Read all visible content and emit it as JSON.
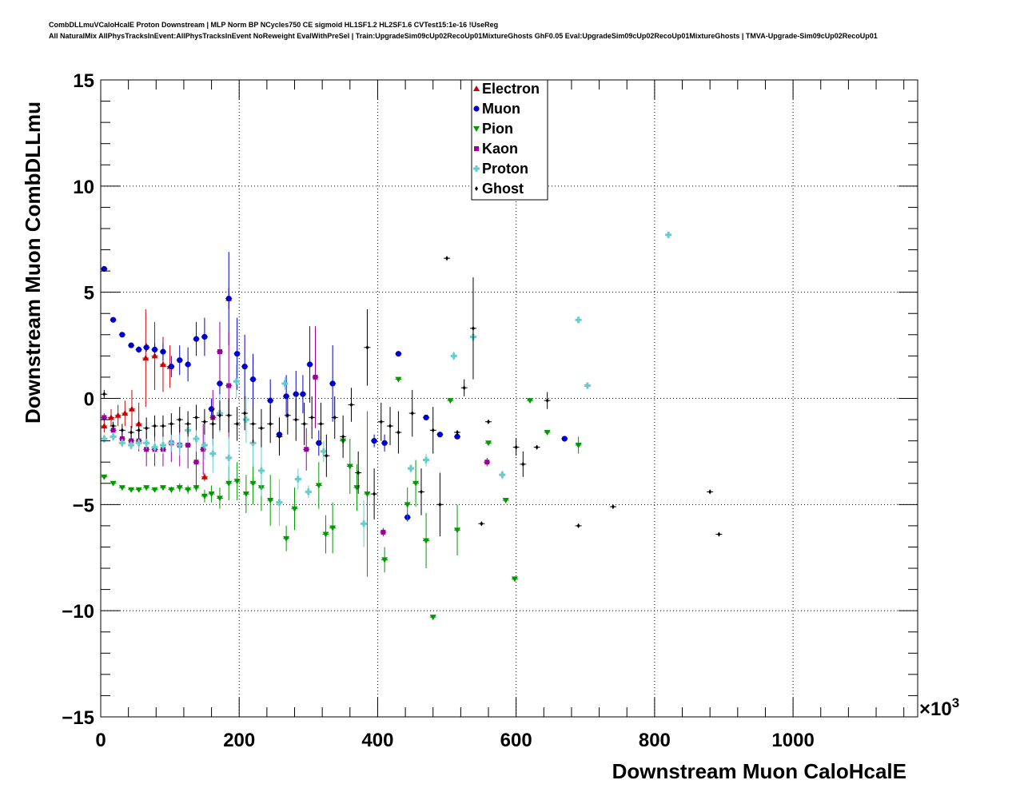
{
  "header": {
    "line1": "CombDLLmuVCaloHcalE Proton Downstream | MLP Norm BP NCycles750 CE sigmoid HL1SF1.2 HL2SF1.6 CVTest15:1e-16 !UseReg",
    "line2": "All NaturalMix AllPhysTracksInEvent:AllPhysTracksInEvent NoReweight EvalWithPreSel | Train:UpgradeSim09cUp02RecoUp01MixtureGhosts GhF0.05 Eval:UpgradeSim09cUp02RecoUp01MixtureGhosts | TMVA-Upgrade-Sim09cUp02RecoUp01"
  },
  "chart_data": {
    "type": "scatter",
    "xlabel": "Downstream Muon CaloHcalE",
    "ylabel": "Downstream Muon CombDLLmu",
    "x_multiplier_label": "×10",
    "x_multiplier_exp": "3",
    "xlim": [
      0,
      1180
    ],
    "ylim": [
      -15,
      15
    ],
    "x_ticks": [
      0,
      200,
      400,
      600,
      800,
      1000
    ],
    "x_tick_labels": [
      "0",
      "200",
      "400",
      "600",
      "800",
      "1000"
    ],
    "y_ticks": [
      -15,
      -10,
      -5,
      0,
      5,
      10,
      15
    ],
    "y_tick_labels": [
      "−15",
      "−10",
      "−5",
      "0",
      "5",
      "10",
      "15"
    ],
    "grid": true,
    "legend_position": "top-center",
    "series": [
      {
        "name": "Electron",
        "color": "#cc0000",
        "marker": "triangle-up",
        "points": [
          [
            5,
            -1.3,
            0.3
          ],
          [
            15,
            -0.9,
            0.4
          ],
          [
            25,
            -0.8,
            0.5
          ],
          [
            35,
            -0.7,
            0.6
          ],
          [
            45,
            -0.5,
            0.9
          ],
          [
            55,
            -1.2,
            1.0
          ],
          [
            65,
            1.9,
            2.3
          ],
          [
            78,
            2.0,
            1.6
          ],
          [
            90,
            1.6,
            1.3
          ],
          [
            100,
            1.5,
            1.0
          ],
          [
            150,
            -3.7,
            0.2
          ],
          [
            185,
            4.7,
            0.5
          ]
        ]
      },
      {
        "name": "Muon",
        "color": "#0000cc",
        "marker": "circle",
        "points": [
          [
            5,
            6.1,
            0.1
          ],
          [
            18,
            3.7,
            0.1
          ],
          [
            31,
            3.0,
            0.1
          ],
          [
            44,
            2.5,
            0.1
          ],
          [
            55,
            2.3,
            0.15
          ],
          [
            66,
            2.4,
            0.2
          ],
          [
            78,
            2.3,
            0.3
          ],
          [
            90,
            2.2,
            0.4
          ],
          [
            102,
            1.5,
            0.5
          ],
          [
            114,
            1.8,
            0.7
          ],
          [
            126,
            1.6,
            0.8
          ],
          [
            138,
            2.8,
            0.8
          ],
          [
            150,
            2.9,
            0.9
          ],
          [
            160,
            -0.5,
            0.5
          ],
          [
            172,
            0.7,
            1.3
          ],
          [
            185,
            4.7,
            2.2
          ],
          [
            197,
            2.1,
            1.7
          ],
          [
            208,
            1.5,
            1.5
          ],
          [
            220,
            0.9,
            1.2
          ],
          [
            245,
            -0.1,
            1.0
          ],
          [
            258,
            -1.7,
            0.8
          ],
          [
            268,
            0.1,
            1.0
          ],
          [
            282,
            0.2,
            1.1
          ],
          [
            292,
            0.2,
            0.9
          ],
          [
            302,
            1.6,
            1.8
          ],
          [
            315,
            -2.1,
            0.6
          ],
          [
            335,
            0.7,
            1.8
          ],
          [
            395,
            -2.0,
            0.3
          ],
          [
            410,
            -2.1,
            0.4
          ],
          [
            430,
            2.1,
            0.1
          ],
          [
            443,
            -5.6,
            0.2
          ],
          [
            470,
            -0.9,
            0.1
          ],
          [
            490,
            -1.7,
            0.1
          ],
          [
            515,
            -1.8,
            0.1
          ],
          [
            670,
            -1.9,
            0.1
          ]
        ]
      },
      {
        "name": "Pion",
        "color": "#009900",
        "marker": "triangle-down",
        "points": [
          [
            5,
            -3.7,
            0.1
          ],
          [
            18,
            -4.0,
            0.1
          ],
          [
            31,
            -4.2,
            0.1
          ],
          [
            44,
            -4.3,
            0.1
          ],
          [
            55,
            -4.3,
            0.1
          ],
          [
            66,
            -4.2,
            0.1
          ],
          [
            78,
            -4.3,
            0.1
          ],
          [
            90,
            -4.2,
            0.1
          ],
          [
            102,
            -4.3,
            0.15
          ],
          [
            114,
            -4.2,
            0.2
          ],
          [
            126,
            -4.3,
            0.2
          ],
          [
            138,
            -4.2,
            0.2
          ],
          [
            150,
            -4.6,
            0.3
          ],
          [
            160,
            -4.5,
            0.4
          ],
          [
            172,
            -4.7,
            0.5
          ],
          [
            185,
            -4.0,
            0.8
          ],
          [
            197,
            -3.9,
            0.9
          ],
          [
            210,
            -4.5,
            0.9
          ],
          [
            220,
            -4.0,
            1.0
          ],
          [
            232,
            -4.2,
            1.1
          ],
          [
            245,
            -4.8,
            1.2
          ],
          [
            268,
            -6.6,
            0.6
          ],
          [
            280,
            -5.2,
            1.0
          ],
          [
            315,
            -4.1,
            1.1
          ],
          [
            325,
            -6.4,
            0.9
          ],
          [
            335,
            -6.1,
            1.2
          ],
          [
            350,
            -2.0,
            0.3
          ],
          [
            360,
            -3.2,
            1.3
          ],
          [
            370,
            -4.2,
            1.1
          ],
          [
            385,
            -4.5,
            3.9
          ],
          [
            410,
            -7.6,
            0.6
          ],
          [
            430,
            0.9,
            0.1
          ],
          [
            443,
            -5.0,
            0.8
          ],
          [
            455,
            -4.0,
            1.1
          ],
          [
            470,
            -6.7,
            1.3
          ],
          [
            480,
            -10.3,
            0.1
          ],
          [
            505,
            -0.1,
            0.1
          ],
          [
            515,
            -6.2,
            1.2
          ],
          [
            560,
            -2.1,
            0.1
          ],
          [
            585,
            -4.8,
            0.1
          ],
          [
            598,
            -8.5,
            0.1
          ],
          [
            620,
            -0.1,
            0.1
          ],
          [
            645,
            -1.6,
            0.1
          ],
          [
            690,
            -2.2,
            0.4
          ]
        ]
      },
      {
        "name": "Kaon",
        "color": "#990099",
        "marker": "square",
        "points": [
          [
            5,
            -0.9,
            0.2
          ],
          [
            18,
            -1.5,
            0.2
          ],
          [
            31,
            -1.9,
            0.3
          ],
          [
            44,
            -2.0,
            0.4
          ],
          [
            55,
            -2.0,
            0.5
          ],
          [
            66,
            -2.4,
            0.8
          ],
          [
            78,
            -2.4,
            0.8
          ],
          [
            90,
            -2.4,
            0.8
          ],
          [
            102,
            -2.1,
            0.9
          ],
          [
            114,
            -2.2,
            1.0
          ],
          [
            126,
            -2.2,
            1.1
          ],
          [
            138,
            -3.0,
            1.2
          ],
          [
            148,
            -2.4,
            1.2
          ],
          [
            162,
            -0.9,
            1.3
          ],
          [
            172,
            2.2,
            1.4
          ],
          [
            185,
            0.6,
            2.5
          ],
          [
            297,
            -2.4,
            1.0
          ],
          [
            310,
            1.0,
            2.4
          ],
          [
            408,
            -6.3,
            0.2
          ],
          [
            558,
            -3.0,
            0.2
          ]
        ]
      },
      {
        "name": "Proton",
        "color": "#66cccc",
        "marker": "cross",
        "points": [
          [
            5,
            -1.9,
            0.2
          ],
          [
            18,
            -1.8,
            0.2
          ],
          [
            31,
            -2.1,
            0.2
          ],
          [
            44,
            -2.2,
            0.2
          ],
          [
            55,
            -2.1,
            0.3
          ],
          [
            66,
            -2.1,
            0.3
          ],
          [
            78,
            -2.3,
            0.3
          ],
          [
            90,
            -2.2,
            0.4
          ],
          [
            102,
            -2.1,
            0.4
          ],
          [
            114,
            -2.2,
            0.5
          ],
          [
            126,
            -1.5,
            0.6
          ],
          [
            138,
            -1.9,
            0.6
          ],
          [
            150,
            -2.2,
            0.7
          ],
          [
            162,
            -2.6,
            0.9
          ],
          [
            172,
            -0.7,
            0.9
          ],
          [
            185,
            -2.8,
            1.0
          ],
          [
            196,
            0.8,
            0.8
          ],
          [
            210,
            -1.0,
            1.1
          ],
          [
            220,
            -2.1,
            1.1
          ],
          [
            232,
            -3.4,
            1.2
          ],
          [
            258,
            -4.9,
            1.1
          ],
          [
            266,
            0.7,
            0.3
          ],
          [
            285,
            -3.8,
            0.5
          ],
          [
            300,
            -4.4,
            0.3
          ],
          [
            322,
            -2.5,
            0.5
          ],
          [
            380,
            -5.9,
            1.1
          ],
          [
            448,
            -3.3,
            0.2
          ],
          [
            470,
            -2.9,
            0.3
          ],
          [
            510,
            2.0,
            0.2
          ],
          [
            538,
            2.9,
            0.2
          ],
          [
            580,
            -3.6,
            0.2
          ],
          [
            690,
            3.7,
            0.1
          ],
          [
            703,
            0.6,
            0.1
          ],
          [
            820,
            7.7,
            0.1
          ]
        ]
      },
      {
        "name": "Ghost",
        "color": "#000000",
        "marker": "diamond",
        "points": [
          [
            5,
            0.2,
            0.2
          ],
          [
            18,
            -1.3,
            0.2
          ],
          [
            31,
            -1.5,
            0.3
          ],
          [
            44,
            -1.6,
            0.3
          ],
          [
            55,
            -1.5,
            0.4
          ],
          [
            66,
            -1.4,
            0.5
          ],
          [
            78,
            -1.3,
            0.5
          ],
          [
            90,
            -1.3,
            0.5
          ],
          [
            102,
            -1.2,
            0.5
          ],
          [
            114,
            -1.0,
            0.6
          ],
          [
            126,
            -1.2,
            0.6
          ],
          [
            138,
            -0.9,
            0.6
          ],
          [
            150,
            -1.1,
            0.6
          ],
          [
            162,
            -1.2,
            0.7
          ],
          [
            172,
            -0.8,
            0.7
          ],
          [
            185,
            -0.8,
            0.8
          ],
          [
            197,
            -1.2,
            0.8
          ],
          [
            208,
            -0.7,
            0.8
          ],
          [
            220,
            -1.2,
            0.9
          ],
          [
            232,
            -1.4,
            0.9
          ],
          [
            245,
            -1.2,
            0.9
          ],
          [
            258,
            -1.8,
            0.9
          ],
          [
            270,
            -0.8,
            0.9
          ],
          [
            282,
            -1.0,
            1.0
          ],
          [
            294,
            -1.2,
            1.0
          ],
          [
            305,
            -0.9,
            1.0
          ],
          [
            318,
            -1.2,
            1.0
          ],
          [
            326,
            -2.7,
            1.0
          ],
          [
            338,
            -0.9,
            1.0
          ],
          [
            350,
            -1.8,
            1.0
          ],
          [
            362,
            -0.3,
            0.8
          ],
          [
            372,
            -3.5,
            1.0
          ],
          [
            385,
            2.4,
            1.8
          ],
          [
            395,
            -4.5,
            1.2
          ],
          [
            405,
            -1.1,
            0.9
          ],
          [
            418,
            -1.3,
            0.9
          ],
          [
            430,
            -1.6,
            1.0
          ],
          [
            450,
            -0.7,
            1.1
          ],
          [
            463,
            -4.4,
            1.1
          ],
          [
            480,
            -1.5,
            1.1
          ],
          [
            490,
            -5.0,
            1.5
          ],
          [
            500,
            6.6,
            0.1
          ],
          [
            515,
            -1.6,
            0.1
          ],
          [
            525,
            0.5,
            0.4
          ],
          [
            538,
            3.3,
            2.4
          ],
          [
            550,
            -5.9,
            0.1
          ],
          [
            560,
            -1.1,
            0.1
          ],
          [
            600,
            -2.3,
            0.4
          ],
          [
            610,
            -3.1,
            0.6
          ],
          [
            630,
            -2.3,
            0.1
          ],
          [
            645,
            -0.1,
            0.4
          ],
          [
            690,
            -6.0,
            0.1
          ],
          [
            740,
            -5.1,
            0.1
          ],
          [
            880,
            -4.4,
            0.1
          ],
          [
            893,
            -6.4,
            0.1
          ]
        ]
      }
    ]
  }
}
